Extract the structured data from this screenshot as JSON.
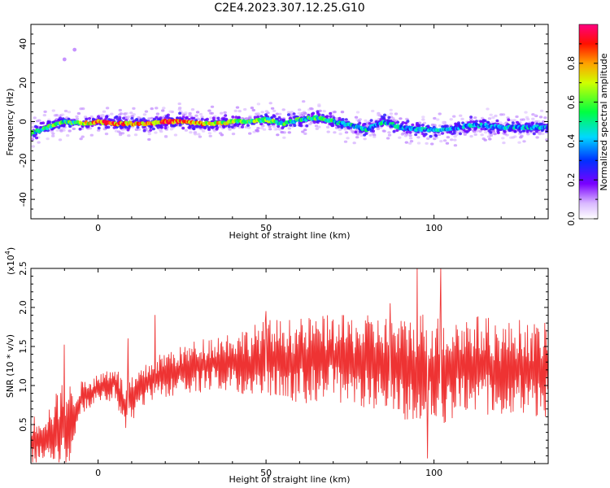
{
  "title": "C2E4.2023.307.12.25.G10",
  "chart_data": [
    {
      "type": "heatmap",
      "xlabel": "Height of straight line (km)",
      "ylabel": "Frequency (Hz)",
      "xlim": [
        -20,
        134
      ],
      "ylim": [
        -50,
        50
      ],
      "xticks": [
        0,
        50,
        100
      ],
      "xtick_labels": [
        "0",
        "50",
        "100"
      ],
      "yticks": [
        -40,
        -20,
        0,
        20,
        40
      ],
      "ytick_labels": [
        "-40",
        "-20",
        "0",
        "20",
        "40"
      ],
      "colorbar": {
        "label": "Normalized spectral amplitude",
        "range": [
          0,
          1
        ],
        "ticks": [
          0.0,
          0.2,
          0.4,
          0.6,
          0.8
        ],
        "tick_labels": [
          "0.0",
          "0.2",
          "0.4",
          "0.6",
          "0.8"
        ],
        "colormap": "rainbow (white → violet → blue → cyan → green → yellow → orange → red → magenta)"
      },
      "ridge": {
        "description": "dominant frequency track vs height",
        "x": [
          -20,
          -15,
          -10,
          -5,
          0,
          5,
          10,
          15,
          20,
          25,
          30,
          35,
          40,
          45,
          50,
          55,
          60,
          65,
          70,
          75,
          80,
          85,
          90,
          95,
          100,
          105,
          110,
          115,
          120,
          125,
          130,
          134
        ],
        "y": [
          -6,
          -3,
          0,
          -1,
          0,
          -1,
          -1,
          -1,
          0,
          0,
          -1,
          -1,
          0,
          0,
          1,
          -1,
          1,
          2,
          0,
          -2,
          -4,
          0,
          -3,
          -4,
          -4,
          -4,
          -2,
          -2,
          -3,
          -3,
          -3,
          -3
        ],
        "amplitude": [
          0.5,
          0.55,
          0.5,
          0.6,
          0.85,
          0.85,
          0.8,
          0.8,
          0.85,
          0.85,
          0.75,
          0.7,
          0.6,
          0.6,
          0.55,
          0.5,
          0.5,
          0.5,
          0.45,
          0.45,
          0.4,
          0.4,
          0.4,
          0.35,
          0.35,
          0.35,
          0.35,
          0.35,
          0.35,
          0.35,
          0.35,
          0.35
        ]
      },
      "outliers": [
        {
          "x": -10,
          "y": 32
        },
        {
          "x": -7,
          "y": 37
        }
      ]
    },
    {
      "type": "line",
      "xlabel": "Height of straight line (km)",
      "ylabel": "SNR (10 * v/v)",
      "y_multiplier_label": "(x10",
      "y_multiplier_exponent": "4",
      "y_multiplier_close": ")",
      "xlim": [
        -20,
        134
      ],
      "ylim": [
        0.0,
        2.5
      ],
      "xticks": [
        0,
        50,
        100
      ],
      "xtick_labels": [
        "0",
        "50",
        "100"
      ],
      "yticks": [
        0.5,
        1.0,
        1.5,
        2.0,
        2.5
      ],
      "ytick_labels": [
        "0.5",
        "1.0",
        "1.5",
        "2.0",
        "2.5"
      ],
      "color": "#ee3333",
      "envelope": {
        "description": "approximate baseline (mean) and spike amplitude of the noisy trace, in units of 1e4",
        "x": [
          -20,
          -15,
          -10,
          -8,
          -5,
          0,
          5,
          8,
          10,
          15,
          20,
          25,
          30,
          35,
          40,
          45,
          50,
          55,
          60,
          65,
          70,
          75,
          80,
          85,
          90,
          95,
          100,
          105,
          110,
          115,
          120,
          125,
          130,
          134
        ],
        "mean": [
          0.3,
          0.35,
          0.5,
          0.5,
          0.85,
          0.95,
          1.05,
          0.7,
          0.8,
          1.05,
          1.15,
          1.2,
          1.25,
          1.3,
          1.3,
          1.3,
          1.35,
          1.35,
          1.3,
          1.35,
          1.35,
          1.3,
          1.3,
          1.3,
          1.2,
          1.25,
          1.2,
          1.2,
          1.25,
          1.25,
          1.2,
          1.25,
          1.2,
          1.2
        ],
        "spread": [
          0.3,
          0.35,
          0.6,
          0.5,
          0.2,
          0.2,
          0.25,
          0.3,
          0.3,
          0.25,
          0.3,
          0.3,
          0.35,
          0.35,
          0.4,
          0.45,
          0.5,
          0.5,
          0.55,
          0.55,
          0.55,
          0.6,
          0.6,
          0.6,
          0.65,
          0.7,
          0.75,
          0.7,
          0.65,
          0.65,
          0.6,
          0.6,
          0.6,
          0.6
        ]
      },
      "notable_points": [
        {
          "x": -10,
          "y": 1.52
        },
        {
          "x": 9,
          "y": 1.6
        },
        {
          "x": 17,
          "y": 1.9
        },
        {
          "x": 50,
          "y": 1.95
        },
        {
          "x": 87,
          "y": 2.05
        },
        {
          "x": 95,
          "y": 2.5
        },
        {
          "x": 102,
          "y": 2.5
        },
        {
          "x": 98,
          "y": 0.07
        }
      ]
    }
  ]
}
